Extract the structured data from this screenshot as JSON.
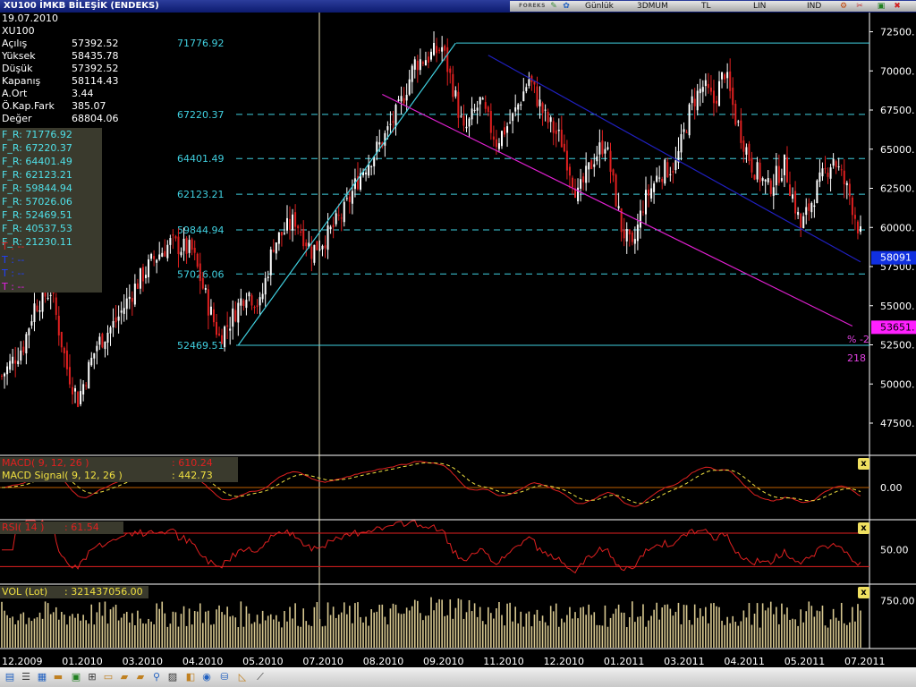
{
  "window": {
    "title": "XU100 İMKB  BİLEŞİK (ENDEKS)",
    "toolbar_logo": "FOREKS",
    "period": "Günlük",
    "chart_style": "3DMUM",
    "currency": "TL",
    "scale": "LIN",
    "mode": "IND"
  },
  "info": {
    "date": "19.07.2010",
    "symbol": "XU100",
    "rows": [
      {
        "label": "Açılış",
        "value": "57392.52"
      },
      {
        "label": "Yüksek",
        "value": "58435.78"
      },
      {
        "label": "Düşük",
        "value": "57392.52"
      },
      {
        "label": "Kapanış",
        "value": "58114.43"
      },
      {
        "label": "A.Ort",
        "value": "3.44"
      },
      {
        "label": "Ö.Kap.Fark",
        "value": "385.07"
      },
      {
        "label": "Değer",
        "value": "68804.06"
      }
    ]
  },
  "fib_box": {
    "items": [
      "F_R: 71776.92",
      "F_R: 67220.37",
      "F_R: 64401.49",
      "F_R: 62123.21",
      "F_R: 59844.94",
      "F_R: 57026.06",
      "F_R: 52469.51",
      "F_R: 40537.53",
      "F_R: 21230.11"
    ],
    "trend_items": [
      {
        "text": "T   : --",
        "color": "#e02020"
      },
      {
        "text": "T   : --",
        "color": "#2040ff"
      },
      {
        "text": "T   : --",
        "color": "#2040ff"
      },
      {
        "text": "T   : --",
        "color": "#e020e0"
      }
    ]
  },
  "chart_data": [
    {
      "type": "candlestick",
      "name": "XU100",
      "x_start": "12.2009",
      "x_end": "07.2011",
      "x_ticks": [
        "12.2009",
        "01.2010",
        "03.2010",
        "04.2010",
        "05.2010",
        "07.2010",
        "08.2010",
        "09.2010",
        "11.2010",
        "12.2010",
        "01.2011",
        "03.2011",
        "04.2011",
        "05.2011",
        "07.2011"
      ],
      "y_ticks": [
        47500,
        50000,
        52500,
        55000,
        57500,
        60000,
        62500,
        65000,
        67500,
        70000,
        72500
      ],
      "y_tick_labels": [
        "47500.",
        "50000.",
        "52500.",
        "55000.",
        "57500.",
        "60000.",
        "62500.",
        "65000.",
        "67500.",
        "70000.",
        "72500."
      ],
      "ylim": [
        45500,
        73500
      ],
      "fib_levels": [
        {
          "value": 71776.92,
          "label": "71776.92",
          "style": "solid"
        },
        {
          "value": 67220.37,
          "label": "67220.37",
          "style": "dashed"
        },
        {
          "value": 64401.49,
          "label": "64401.49",
          "style": "dashed"
        },
        {
          "value": 62123.21,
          "label": "62123.21",
          "style": "dashed"
        },
        {
          "value": 59844.94,
          "label": "59844.94",
          "style": "dashed"
        },
        {
          "value": 57026.06,
          "label": "57026.06",
          "style": "dashed"
        },
        {
          "value": 52469.51,
          "label": "52469.51",
          "style": "solid"
        }
      ],
      "anchor_points": [
        {
          "i": 0,
          "v": 50500
        },
        {
          "i": 8,
          "v": 52500
        },
        {
          "i": 12,
          "v": 55000
        },
        {
          "i": 18,
          "v": 56000
        },
        {
          "i": 24,
          "v": 51000
        },
        {
          "i": 28,
          "v": 49000
        },
        {
          "i": 35,
          "v": 52500
        },
        {
          "i": 42,
          "v": 54000
        },
        {
          "i": 50,
          "v": 56500
        },
        {
          "i": 56,
          "v": 58000
        },
        {
          "i": 62,
          "v": 59000
        },
        {
          "i": 70,
          "v": 58500
        },
        {
          "i": 76,
          "v": 55000
        },
        {
          "i": 80,
          "v": 53000
        },
        {
          "i": 84,
          "v": 54000
        },
        {
          "i": 90,
          "v": 56000
        },
        {
          "i": 95,
          "v": 55000
        },
        {
          "i": 100,
          "v": 59000
        },
        {
          "i": 108,
          "v": 60500
        },
        {
          "i": 114,
          "v": 58500
        },
        {
          "i": 120,
          "v": 59500
        },
        {
          "i": 126,
          "v": 61000
        },
        {
          "i": 132,
          "v": 63500
        },
        {
          "i": 140,
          "v": 65500
        },
        {
          "i": 146,
          "v": 67500
        },
        {
          "i": 152,
          "v": 70500
        },
        {
          "i": 158,
          "v": 71000
        },
        {
          "i": 162,
          "v": 71500
        },
        {
          "i": 166,
          "v": 69000
        },
        {
          "i": 170,
          "v": 66000
        },
        {
          "i": 176,
          "v": 68000
        },
        {
          "i": 182,
          "v": 65500
        },
        {
          "i": 188,
          "v": 67000
        },
        {
          "i": 194,
          "v": 69500
        },
        {
          "i": 200,
          "v": 67000
        },
        {
          "i": 206,
          "v": 65500
        },
        {
          "i": 212,
          "v": 62000
        },
        {
          "i": 218,
          "v": 64500
        },
        {
          "i": 222,
          "v": 65500
        },
        {
          "i": 228,
          "v": 60000
        },
        {
          "i": 232,
          "v": 58500
        },
        {
          "i": 236,
          "v": 61500
        },
        {
          "i": 242,
          "v": 63500
        },
        {
          "i": 248,
          "v": 64000
        },
        {
          "i": 254,
          "v": 68000
        },
        {
          "i": 258,
          "v": 69000
        },
        {
          "i": 262,
          "v": 68000
        },
        {
          "i": 266,
          "v": 70000
        },
        {
          "i": 270,
          "v": 67000
        },
        {
          "i": 276,
          "v": 64000
        },
        {
          "i": 282,
          "v": 62500
        },
        {
          "i": 288,
          "v": 64000
        },
        {
          "i": 294,
          "v": 60000
        },
        {
          "i": 300,
          "v": 62500
        },
        {
          "i": 306,
          "v": 64500
        },
        {
          "i": 312,
          "v": 62000
        },
        {
          "i": 316,
          "v": 59500
        }
      ],
      "bars": 317,
      "trend_lines": [
        {
          "from": {
            "i": 87,
            "v": 52469.51
          },
          "to": {
            "i": 167,
            "v": 71776.92
          },
          "color": "#40d0e0"
        },
        {
          "from": {
            "i": 179,
            "v": 71000
          },
          "to": {
            "i": 316,
            "v": 57800
          },
          "color": "#2020c0"
        },
        {
          "from": {
            "i": 140,
            "v": 68500
          },
          "to": {
            "i": 313,
            "v": 53700
          },
          "color": "#e020d0"
        }
      ],
      "price_tags": [
        {
          "value": 58091,
          "text": "58091",
          "bg": "#1030e0",
          "fg": "#ffffff"
        },
        {
          "value": 53651,
          "text": "53651.",
          "bg": "#ff20ff",
          "fg": "#000000"
        }
      ],
      "annotations": [
        {
          "text": "% -2",
          "color": "#e040e0"
        },
        {
          "text": "218",
          "color": "#e040e0"
        }
      ]
    },
    {
      "type": "line",
      "name": "MACD",
      "series": [
        {
          "name": "MACD( 9, 12, 26 )",
          "value_label": ": 610.24",
          "color": "#e02020"
        },
        {
          "name": "MACD Signal( 9, 12, 26 )",
          "value_label": ": 442.73",
          "color": "#f0e040"
        }
      ],
      "y_ticks": [
        0
      ],
      "y_tick_labels": [
        "0.00"
      ],
      "ylim": [
        -2600,
        2600
      ]
    },
    {
      "type": "line",
      "name": "RSI",
      "series": [
        {
          "name": "RSI( 14 )",
          "value_label": ": 61.54",
          "color": "#e02020"
        }
      ],
      "y_ticks": [
        50
      ],
      "y_tick_labels": [
        "50.00"
      ],
      "ylim": [
        10,
        85
      ],
      "levels": [
        70,
        30
      ]
    },
    {
      "type": "bar",
      "name": "VOL",
      "series": [
        {
          "name": "VOL (Lot)",
          "value_label": ": 321437056.00",
          "color": "#d8c890"
        }
      ],
      "y_ticks": [
        750
      ],
      "y_tick_labels": [
        "750.00"
      ],
      "ylim": [
        0,
        1000
      ]
    }
  ],
  "colors": {
    "background": "#000000",
    "grid": "#ffffff",
    "fib": "#40d0e0",
    "panel_separator": "#ffffff",
    "bar_up": "#ffffff",
    "bar_down": "#e02020",
    "macd_zero": "#c06000",
    "rsi_level": "#e02020",
    "info_bg": "#3a3a2d",
    "crosshair": "#f0e8c0"
  }
}
